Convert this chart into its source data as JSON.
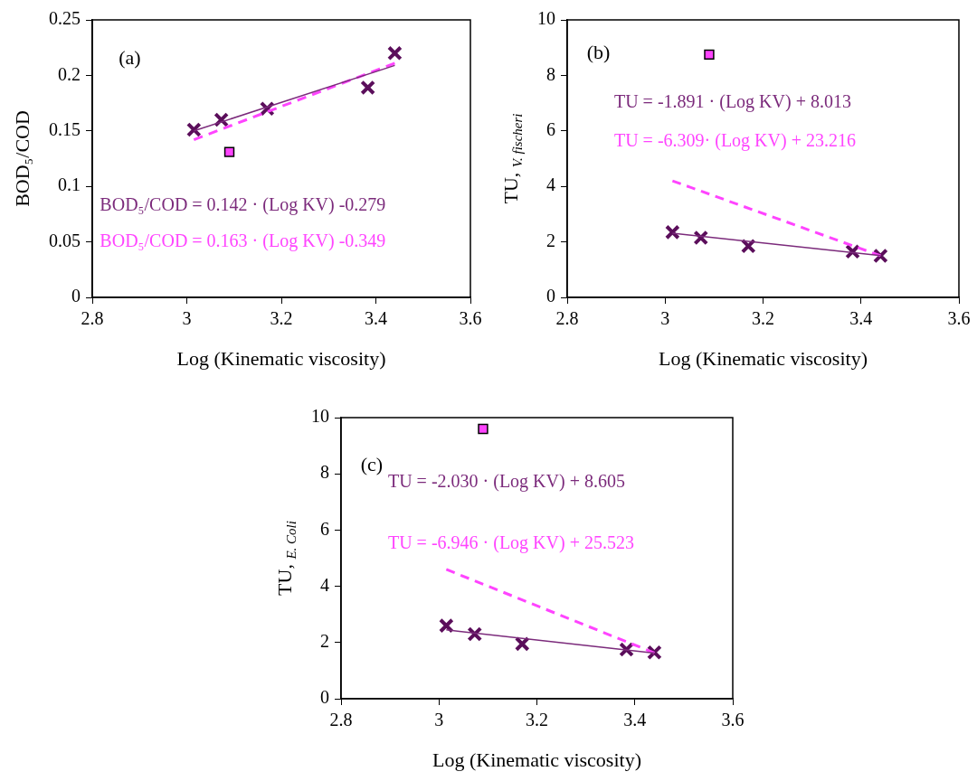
{
  "chart_data": [
    {
      "type": "scatter",
      "xlabel": "Log (Kinematic viscosity)",
      "ylabel": "BOD₅/COD",
      "xlim": [
        2.8,
        3.6
      ],
      "xticks": [
        2.8,
        3,
        3.2,
        3.4,
        3.6
      ],
      "ylim": [
        0,
        0.25
      ],
      "yticks": [
        0,
        0.05,
        0.1,
        0.15,
        0.2,
        0.25
      ],
      "annotations": [
        "(a)",
        "BOD₅/COD = 0.142 · (Log KV) -0.279",
        "BOD₅/COD = 0.163 · (Log KV) -0.349"
      ],
      "series": [
        {
          "type": "scatter",
          "marker": "cross",
          "color": "#5b0e5b",
          "x": [
            3.015,
            3.073,
            3.17,
            3.383,
            3.44
          ],
          "values": [
            0.151,
            0.16,
            0.17,
            0.189,
            0.22
          ]
        },
        {
          "type": "scatter",
          "marker": "square",
          "color": "#ff44ff",
          "x": [
            3.09
          ],
          "values": [
            0.131
          ]
        },
        {
          "type": "line",
          "marker": "none",
          "line_style": "solid",
          "color": "#7b2a7b",
          "x": [
            3.015,
            3.44
          ],
          "values": [
            0.15,
            0.209
          ]
        },
        {
          "type": "line",
          "marker": "none",
          "line_style": "dashed",
          "color": "#ff44ff",
          "x": [
            3.015,
            3.44
          ],
          "values": [
            0.142,
            0.211
          ]
        }
      ]
    },
    {
      "type": "scatter",
      "xlabel": "Log (Kinematic viscosity)",
      "ylabel": "TU, $_{V. fischeri}$",
      "xlim": [
        2.8,
        3.6
      ],
      "xticks": [
        2.8,
        3,
        3.2,
        3.4,
        3.6
      ],
      "ylim": [
        0,
        10
      ],
      "yticks": [
        0,
        2,
        4,
        6,
        8,
        10
      ],
      "annotations": [
        "(b)",
        "TU = -1.891 · (Log KV) + 8.013",
        "TU = -6.309· (Log KV) + 23.216"
      ],
      "series": [
        {
          "type": "scatter",
          "marker": "cross",
          "color": "#5b0e5b",
          "x": [
            3.015,
            3.073,
            3.17,
            3.383,
            3.44
          ],
          "values": [
            2.35,
            2.15,
            1.85,
            1.65,
            1.5
          ]
        },
        {
          "type": "scatter",
          "marker": "square",
          "color": "#ff44ff",
          "x": [
            3.09
          ],
          "values": [
            8.75
          ]
        },
        {
          "type": "line",
          "marker": "none",
          "line_style": "solid",
          "color": "#7b2a7b",
          "x": [
            3.015,
            3.44
          ],
          "values": [
            2.31,
            1.51
          ]
        },
        {
          "type": "line",
          "marker": "none",
          "line_style": "dashed",
          "color": "#ff44ff",
          "x": [
            3.015,
            3.44
          ],
          "values": [
            4.2,
            1.5
          ]
        }
      ]
    },
    {
      "type": "scatter",
      "xlabel": "Log (Kinematic viscosity)",
      "ylabel": "TU, $_{E. Coli}$",
      "xlim": [
        2.8,
        3.6
      ],
      "xticks": [
        2.8,
        3,
        3.2,
        3.4,
        3.6
      ],
      "ylim": [
        0,
        10
      ],
      "yticks": [
        0,
        2,
        4,
        6,
        8,
        10
      ],
      "annotations": [
        "(c)",
        "TU = -2.030 · (Log KV) + 8.605",
        "TU = -6.946 · (Log KV) + 25.523"
      ],
      "series": [
        {
          "type": "scatter",
          "marker": "cross",
          "color": "#5b0e5b",
          "x": [
            3.015,
            3.073,
            3.17,
            3.383,
            3.44
          ],
          "values": [
            2.6,
            2.3,
            1.95,
            1.75,
            1.65
          ]
        },
        {
          "type": "scatter",
          "marker": "square",
          "color": "#ff44ff",
          "x": [
            3.09
          ],
          "values": [
            9.6
          ]
        },
        {
          "type": "line",
          "marker": "none",
          "line_style": "solid",
          "color": "#7b2a7b",
          "x": [
            3.015,
            3.44
          ],
          "values": [
            2.45,
            1.62
          ]
        },
        {
          "type": "line",
          "marker": "none",
          "line_style": "dashed",
          "color": "#ff44ff",
          "x": [
            3.015,
            3.44
          ],
          "values": [
            4.6,
            1.63
          ]
        }
      ]
    }
  ]
}
